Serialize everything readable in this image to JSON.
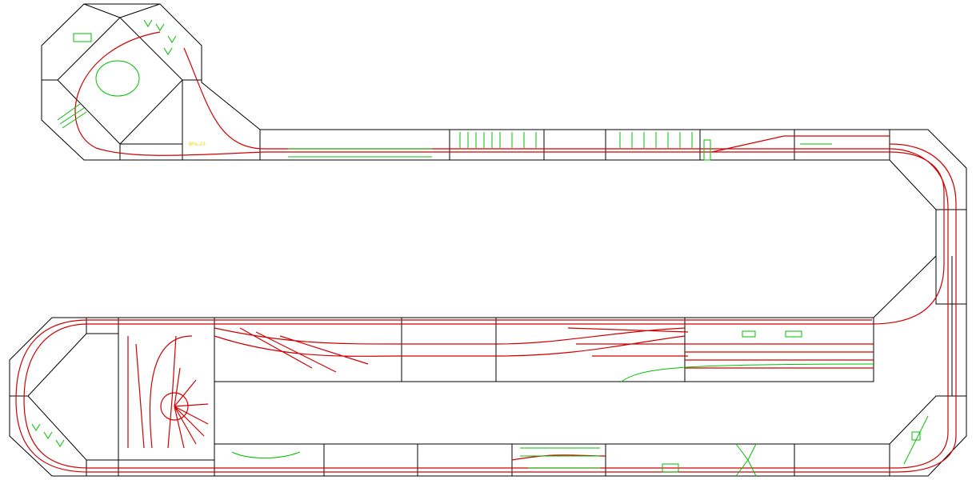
{
  "labels": [
    "Bhs-23"
  ]
}
